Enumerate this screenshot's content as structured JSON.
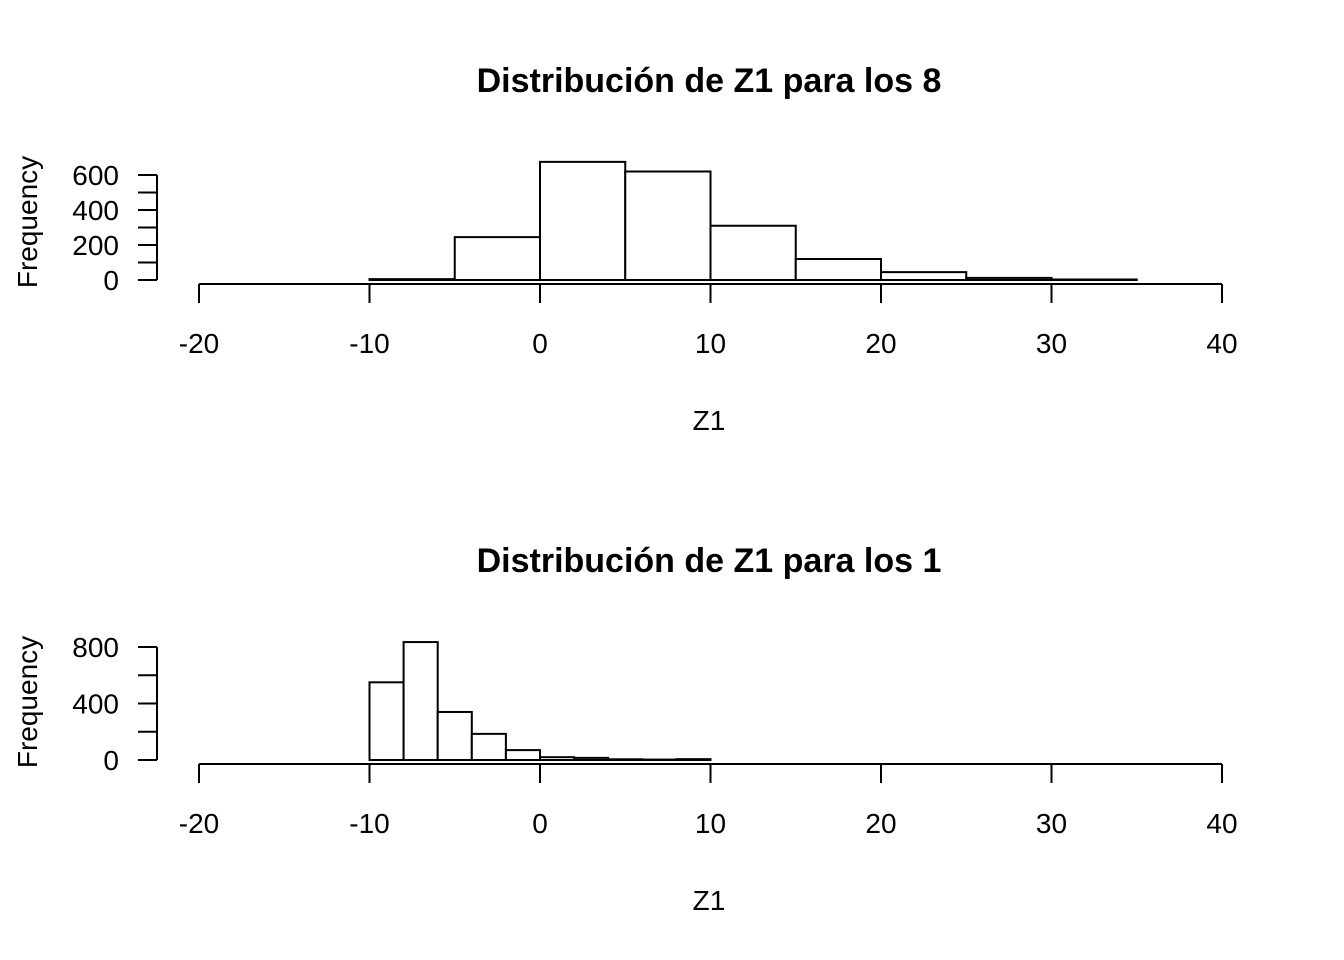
{
  "chart_data": [
    {
      "type": "histogram",
      "title": "Distribución de Z1 para los 8",
      "xlabel": "Z1",
      "ylabel": "Frequency",
      "xlim": [
        -20,
        40
      ],
      "ylim": [
        0,
        600
      ],
      "x_ticks": [
        "-20",
        "-10",
        "0",
        "10",
        "20",
        "30",
        "40"
      ],
      "y_ticks": [
        "0",
        "200",
        "400",
        "600"
      ],
      "bins": [
        {
          "x0": -10,
          "x1": -5,
          "count": 5
        },
        {
          "x0": -5,
          "x1": 0,
          "count": 245
        },
        {
          "x0": 0,
          "x1": 5,
          "count": 675
        },
        {
          "x0": 5,
          "x1": 10,
          "count": 620
        },
        {
          "x0": 10,
          "x1": 15,
          "count": 310
        },
        {
          "x0": 15,
          "x1": 20,
          "count": 120
        },
        {
          "x0": 20,
          "x1": 25,
          "count": 45
        },
        {
          "x0": 25,
          "x1": 30,
          "count": 12
        },
        {
          "x0": 30,
          "x1": 35,
          "count": 3
        }
      ],
      "grid": false
    },
    {
      "type": "histogram",
      "title": "Distribución de Z1 para los 1",
      "xlabel": "Z1",
      "ylabel": "Frequency",
      "xlim": [
        -20,
        40
      ],
      "ylim": [
        0,
        800
      ],
      "x_ticks": [
        "-20",
        "-10",
        "0",
        "10",
        "20",
        "30",
        "40"
      ],
      "y_ticks": [
        "0",
        "400",
        "800"
      ],
      "bins": [
        {
          "x0": -10,
          "x1": -8,
          "count": 550
        },
        {
          "x0": -8,
          "x1": -6,
          "count": 835
        },
        {
          "x0": -6,
          "x1": -4,
          "count": 340
        },
        {
          "x0": -4,
          "x1": -2,
          "count": 185
        },
        {
          "x0": -2,
          "x1": 0,
          "count": 70
        },
        {
          "x0": 0,
          "x1": 2,
          "count": 20
        },
        {
          "x0": 2,
          "x1": 4,
          "count": 15
        },
        {
          "x0": 4,
          "x1": 6,
          "count": 5
        },
        {
          "x0": 6,
          "x1": 8,
          "count": 3
        },
        {
          "x0": 8,
          "x1": 10,
          "count": 6
        }
      ],
      "grid": false
    }
  ]
}
